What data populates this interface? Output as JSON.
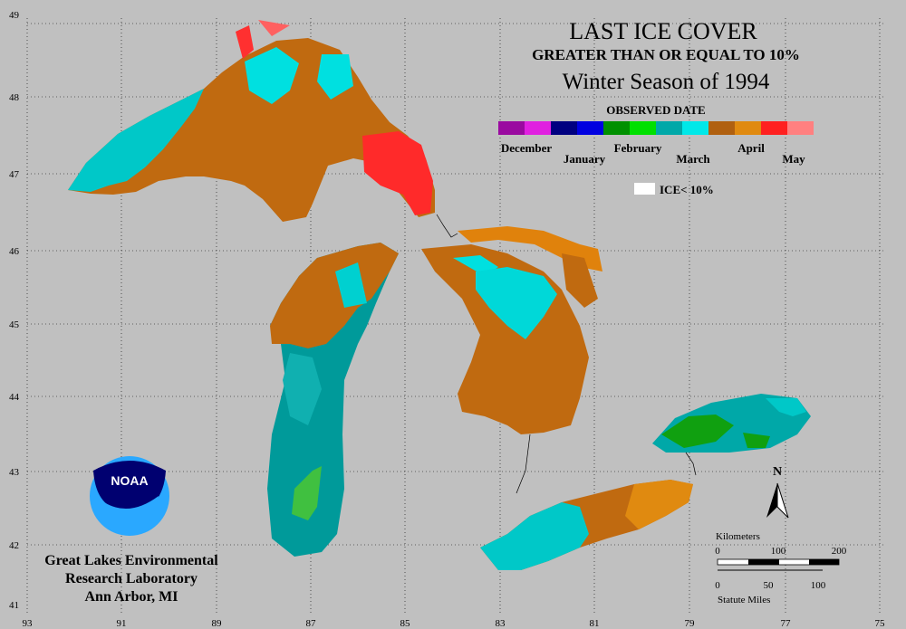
{
  "title": {
    "line1": "LAST ICE COVER",
    "line2": "GREATER THAN OR EQUAL TO 10%",
    "line3": "Winter Season of 1994"
  },
  "legend": {
    "heading": "OBSERVED DATE",
    "months_top": [
      "December",
      "February",
      "April"
    ],
    "months_bottom": [
      "January",
      "March",
      "May"
    ],
    "colors": [
      "#9a0aa0",
      "#e020e0",
      "#000080",
      "#0000e0",
      "#009000",
      "#00e000",
      "#00a8a8",
      "#00e8e8",
      "#b06010",
      "#e08a10",
      "#ff2020",
      "#ff8080"
    ],
    "no_ice_label": "ICE< 10%"
  },
  "axes": {
    "lat_labels": [
      "49",
      "48",
      "47",
      "46",
      "45",
      "44",
      "43",
      "42",
      "41"
    ],
    "lon_labels": [
      "93",
      "91",
      "89",
      "87",
      "85",
      "83",
      "81",
      "79",
      "77",
      "75"
    ],
    "grid": true
  },
  "north_arrow": {
    "label": "N"
  },
  "scale_bar": {
    "km_label": "Kilometers",
    "km_ticks": [
      "0",
      "100",
      "200"
    ],
    "mi_ticks": [
      "0",
      "50",
      "100"
    ],
    "mi_label": "Statute Miles"
  },
  "logo": {
    "text": "NOAA"
  },
  "credit": {
    "line1": "Great Lakes Environmental",
    "line2": "Research Laboratory",
    "line3": "Ann Arbor, MI"
  }
}
